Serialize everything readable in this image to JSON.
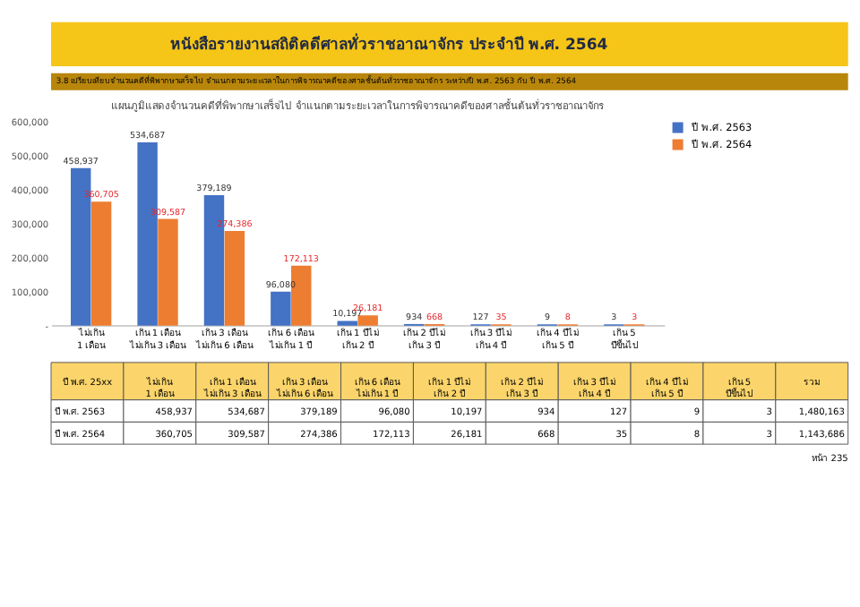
{
  "chart_data": {
    "type": "bar",
    "title": "หนังสือรายงานสถิติคดีศาลทั่วราชอาณาจักร ประจำปี พ.ศ. 2564",
    "subtitle": "3.8 เปรียบเทียบจำนวนคดีที่พิพากษาเสร็จไป จำแนกตามระยะเวลาในการพิจารณาคดีของศาลชั้นต้นทั่วราชอาณาจักร ระหว่างปี พ.ศ. 2563 กับ ปี พ.ศ. 2564",
    "categories": [
      "ไม่เกิน 1 เดือน",
      "เกิน 1 เดือน ไม่เกิน 3 เดือน",
      "เกิน 3 เดือน ไม่เกิน 6 เดือน",
      "เกิน 6 เดือน ไม่เกิน 1 ปี",
      "เกิน 1 ปีไม่ เกิน 2 ปี",
      "เกิน 2 ปีไม่ เกิน 3 ปี",
      "เกิน 3 ปีไม่ เกิน 4 ปี",
      "เกิน 4 ปีไม่ เกิน 5 ปี",
      "เกิน 5 ปีขึ้นไป"
    ],
    "series": [
      {
        "name": "ปี พ.ศ. 2563",
        "color": "#4472c4",
        "values": [
          458937,
          534687,
          379189,
          96080,
          10197,
          934,
          127,
          9,
          3
        ],
        "value_labels": [
          "458,937",
          "534,687",
          "379,189",
          "96,080",
          "10,197",
          "934",
          "127",
          "9",
          "3"
        ]
      },
      {
        "name": "ปี พ.ศ. 2564",
        "color": "#ed7d31",
        "values": [
          360705,
          309587,
          274386,
          172113,
          26181,
          668,
          35,
          8,
          3
        ],
        "value_labels": [
          "360,705",
          "309,587",
          "274,386",
          "172,113",
          "26,181",
          "668",
          "35",
          "8",
          "3"
        ]
      }
    ],
    "ylim": [
      0,
      600000
    ],
    "yticks": [
      {
        "value": 0,
        "label": "-"
      },
      {
        "value": 100000,
        "label": "100,000"
      },
      {
        "value": 200000,
        "label": "200,000"
      },
      {
        "value": 300000,
        "label": "300,000"
      },
      {
        "value": 400000,
        "label": "400,000"
      },
      {
        "value": 500000,
        "label": "500,000"
      },
      {
        "value": 600000,
        "label": "600,000"
      }
    ],
    "grid": false,
    "legend": "right",
    "annotations": [
      "แผนภูมิแสดงจำนวนคดีที่พิพากษาเสร็จไป จำแนกตามระยะเวลาในการพิจารณาคดีของศาลชั้นต้นทั่วราชอาณาจักร",
      "ปี พ.ศ. 25xx",
      "รวม",
      "1,480,163",
      "1,143,686",
      "หน้า 235"
    ]
  }
}
